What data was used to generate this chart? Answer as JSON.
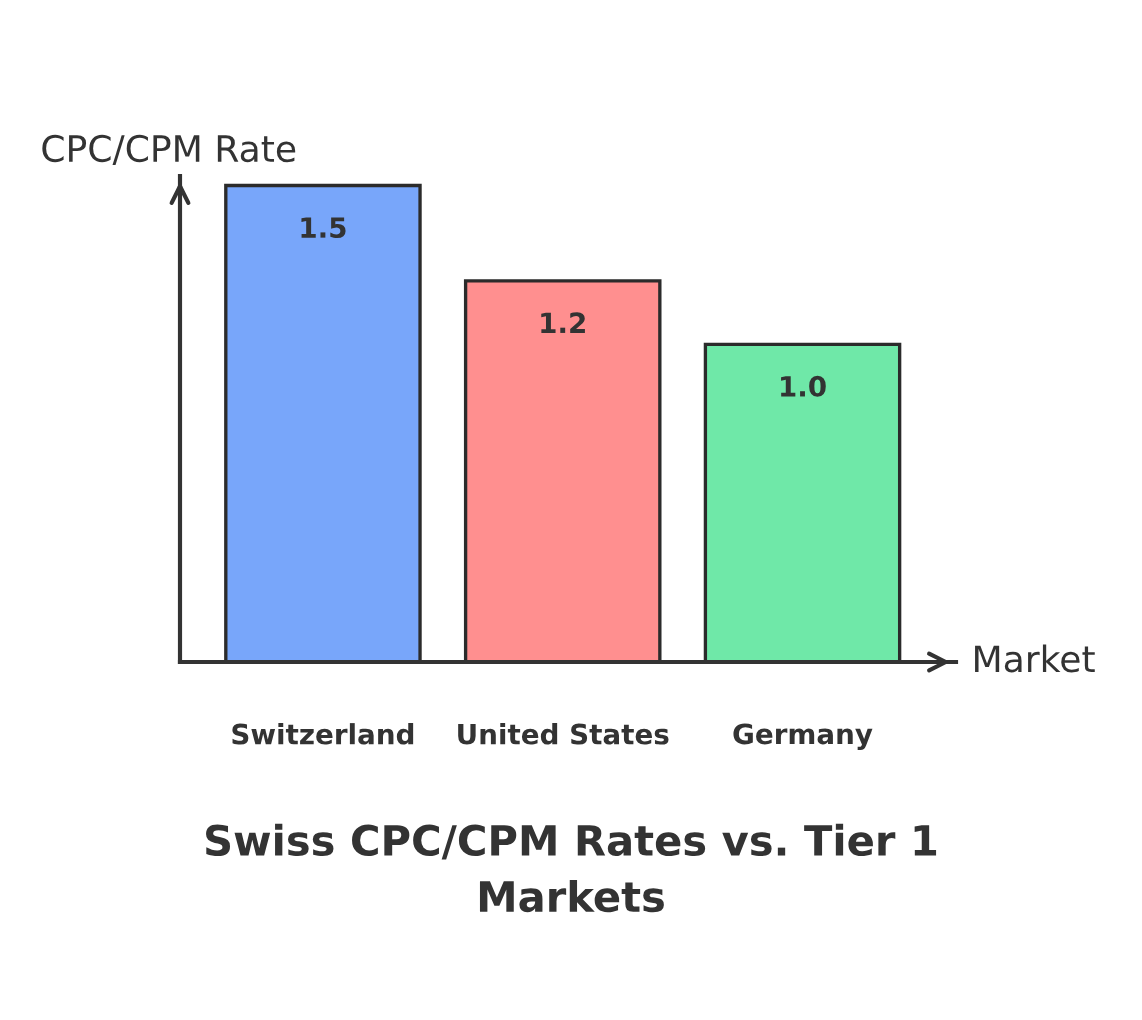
{
  "chart_data": {
    "type": "bar",
    "title": "Swiss CPC/CPM Rates vs. Tier 1\nMarkets",
    "xlabel": "Market",
    "ylabel": "CPC/CPM Rate",
    "categories": [
      "Switzerland",
      "United States",
      "Germany"
    ],
    "values": [
      1.5,
      1.2,
      1.0
    ],
    "colors": [
      "#78a6fa",
      "#ff8f8f",
      "#6fe8a8"
    ],
    "value_labels": [
      "1.5",
      "1.2",
      "1.0"
    ],
    "grid": false,
    "legend": false,
    "tick_labels": "x"
  }
}
